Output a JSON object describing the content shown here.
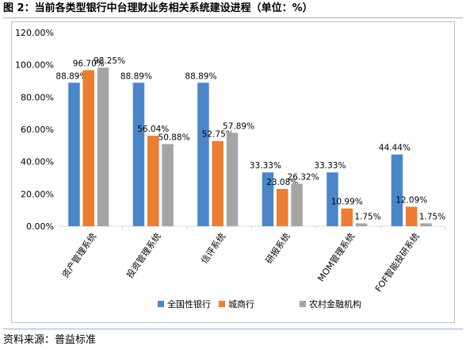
{
  "figure": {
    "title": "图 2：当前各类型银行中台理财业务相关系统建设进程（单位：%）",
    "source": "资料来源：普益标准"
  },
  "colors": {
    "series": [
      "#4a86c8",
      "#ed7d31",
      "#a5a5a5"
    ],
    "axis": "#d9d9d9",
    "text": "#000000"
  },
  "chart_data": {
    "type": "bar",
    "categories": [
      "资产管理系统",
      "投资管理系统",
      "信评系统",
      "研报系统",
      "MOM管理系统",
      "FOF智能投研系统"
    ],
    "series": [
      {
        "name": "全国性银行",
        "values": [
          88.89,
          88.89,
          88.89,
          33.33,
          33.33,
          44.44
        ],
        "labels": [
          "88.89%",
          "88.89%",
          "88.89%",
          "33.33%",
          "33.33%",
          "44.44%"
        ]
      },
      {
        "name": "城商行",
        "values": [
          96.7,
          56.04,
          52.75,
          23.08,
          10.99,
          12.09
        ],
        "labels": [
          "96.70%",
          "56.04%",
          "52.75%",
          "23.08%",
          "10.99%",
          "12.09%"
        ]
      },
      {
        "name": "农村金融机构",
        "values": [
          98.25,
          50.88,
          57.89,
          26.32,
          1.75,
          1.75
        ],
        "labels": [
          "98.25%",
          "50.88%",
          "57.89%",
          "26.32%",
          "1.75%",
          "1.75%"
        ]
      }
    ],
    "yticks": [
      "0.00%",
      "20.00%",
      "40.00%",
      "60.00%",
      "80.00%",
      "100.00%",
      "120.00%"
    ],
    "ylim": [
      0,
      120
    ],
    "grid": false,
    "legend": "bottom"
  }
}
